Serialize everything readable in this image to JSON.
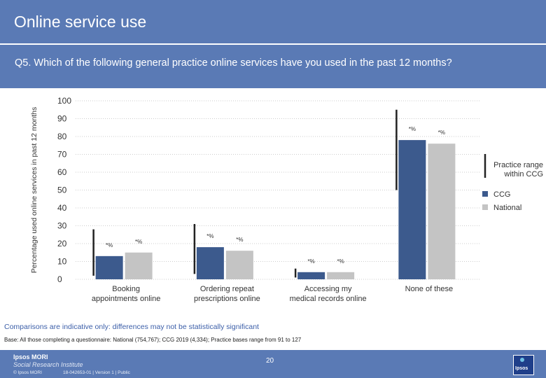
{
  "header": {
    "title": "Online service use"
  },
  "question": "Q5. Which of the following general practice online services have you used in the past 12 months?",
  "chart_data": {
    "type": "bar",
    "ylabel": "Percentage used online services in past 12 months",
    "ylim": [
      0,
      100
    ],
    "yticks": [
      0,
      10,
      20,
      30,
      40,
      50,
      60,
      70,
      80,
      90,
      100
    ],
    "categories": [
      "Booking appointments online",
      "Ordering repeat prescriptions online",
      "Accessing my medical records online",
      "None of these"
    ],
    "series": [
      {
        "name": "CCG",
        "color": "#3c5a8d",
        "values": [
          13,
          18,
          4,
          78
        ],
        "labels": [
          "*%",
          "*%",
          "*%",
          "*%"
        ]
      },
      {
        "name": "National",
        "color": "#c4c4c4",
        "values": [
          15,
          16,
          4,
          76
        ],
        "labels": [
          "*%",
          "*%",
          "*%",
          "*%"
        ]
      }
    ],
    "range_lines": [
      [
        2,
        28
      ],
      [
        3,
        31
      ],
      [
        1,
        6
      ],
      [
        50,
        95
      ]
    ],
    "legend": {
      "range_label": "Practice range within CCG",
      "position": "right"
    },
    "grid": true
  },
  "footnotes": {
    "comparison": "Comparisons are indicative only: differences may not be statistically significant",
    "base": "Base: All those completing a questionnaire: National (754,767); CCG 2019 (4,334); Practice bases range from 91 to 127"
  },
  "footer": {
    "logo": "Ipsos MORI",
    "logo_sub": "Social Research Institute",
    "copyright": "© Ipsos MORI",
    "ref": "18-042653-01 | Version 1 | Public",
    "page": "20",
    "badge_word": "Ipsos"
  }
}
